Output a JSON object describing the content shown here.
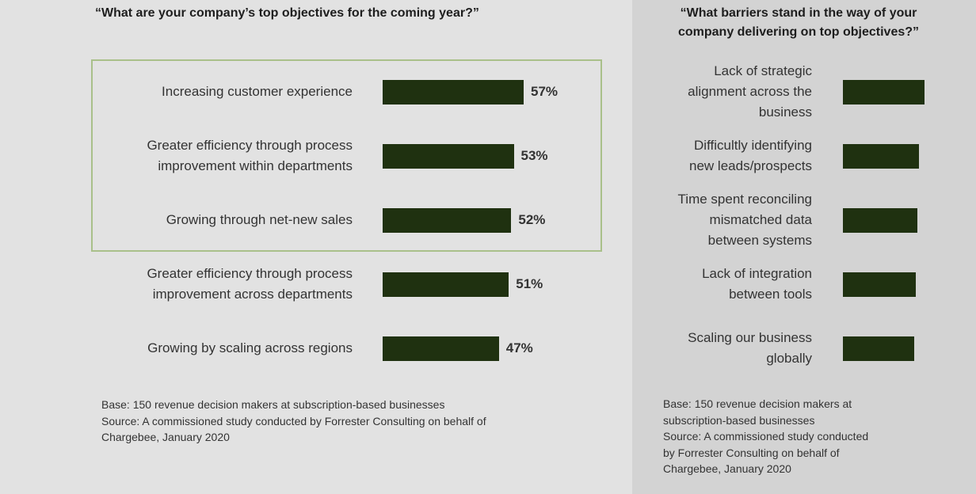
{
  "chart_data": [
    {
      "type": "bar",
      "orientation": "horizontal",
      "title": "“What are your company’s top objectives for the coming year?”",
      "categories": [
        "Increasing customer experience",
        "Greater efficiency through process\nimprovement within departments",
        "Growing through net-new sales",
        "Greater efficiency through process\nimprovement across departments",
        "Growing by scaling across regions"
      ],
      "values": [
        57,
        53,
        52,
        51,
        47
      ],
      "value_labels": [
        "57%",
        "53%",
        "52%",
        "51%",
        "47%"
      ],
      "highlighted_categories": [
        0,
        1,
        2
      ],
      "grid": false,
      "footnote": "Base: 150 revenue decision makers at subscription-based businesses\nSource: A commissioned study conducted by Forrester Consulting on behalf of\nChargebee, January 2020"
    },
    {
      "type": "bar",
      "orientation": "horizontal",
      "title": "“What barriers stand in the way of your\ncompany delivering on top objectives?”",
      "categories": [
        "Lack of strategic\nalignment across the\nbusiness",
        "Difficultly identifying\nnew leads/prospects",
        "Time spent reconciling\nmismatched data\nbetween systems",
        "Lack of integration\nbetween tools",
        "Scaling our business\nglobally"
      ],
      "values": [
        57,
        53,
        52,
        51,
        50
      ],
      "grid": false,
      "footnote": "Base: 150 revenue decision makers at\nsubscription-based businesses\nSource: A commissioned study conducted\nby Forrester Consulting on behalf of\nChargebee, January 2020"
    }
  ],
  "colors": {
    "bar": "#1f3110",
    "highlight_border": "#a9c08a",
    "left_background": "#e2e2e2",
    "right_background": "#d3d3d3"
  }
}
